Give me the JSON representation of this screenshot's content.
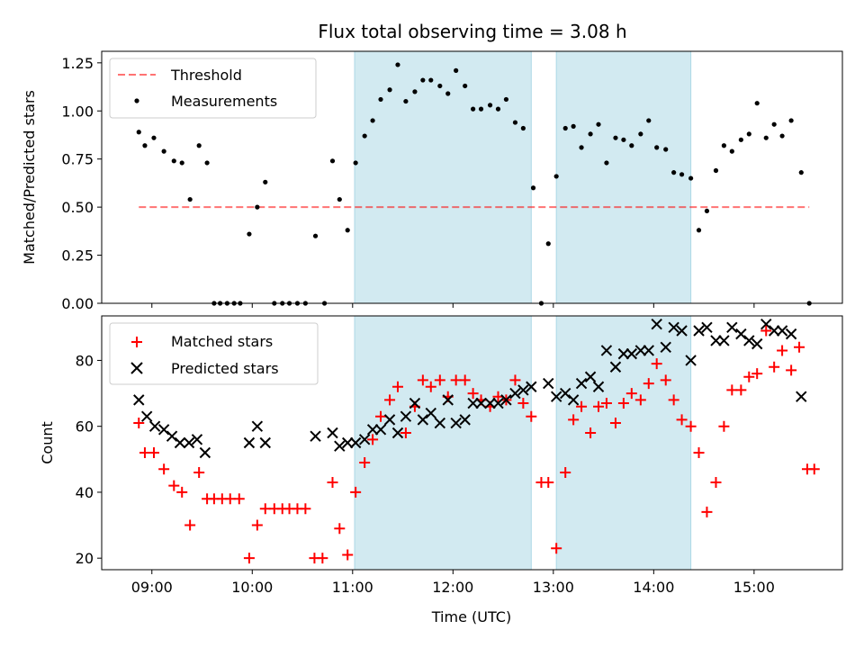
{
  "colors": {
    "span": "#add8e6",
    "threshold": "#ff0000",
    "matched": "#ff0000",
    "predicted": "#000000",
    "measurement": "#000000"
  },
  "chart_data": [
    {
      "type": "scatter",
      "title": "Flux total observing time = 3.08 h",
      "xlabel": "",
      "ylabel": "Matched/Predicted stars",
      "xlim": [
        8.5,
        15.88
      ],
      "ylim": [
        0,
        1.31
      ],
      "yticks": [
        0.0,
        0.25,
        0.5,
        0.75,
        1.0,
        1.25
      ],
      "ytick_labels": [
        "0.00",
        "0.25",
        "0.50",
        "0.75",
        "1.00",
        "1.25"
      ],
      "legend": [
        "Threshold",
        "Measurements"
      ],
      "threshold": {
        "name": "Threshold",
        "value": 0.5,
        "x_range": [
          8.87,
          15.55
        ]
      },
      "observing_spans": [
        [
          11.02,
          12.78
        ],
        [
          13.03,
          14.37
        ]
      ],
      "series": [
        {
          "name": "Measurements",
          "points": [
            [
              8.87,
              0.89
            ],
            [
              8.93,
              0.82
            ],
            [
              9.02,
              0.86
            ],
            [
              9.12,
              0.79
            ],
            [
              9.22,
              0.74
            ],
            [
              9.3,
              0.73
            ],
            [
              9.38,
              0.54
            ],
            [
              9.47,
              0.82
            ],
            [
              9.55,
              0.73
            ],
            [
              9.62,
              0.0
            ],
            [
              9.68,
              0.0
            ],
            [
              9.75,
              0.0
            ],
            [
              9.82,
              0.0
            ],
            [
              9.88,
              0.0
            ],
            [
              9.97,
              0.36
            ],
            [
              10.05,
              0.5
            ],
            [
              10.13,
              0.63
            ],
            [
              10.22,
              0.0
            ],
            [
              10.3,
              0.0
            ],
            [
              10.37,
              0.0
            ],
            [
              10.45,
              0.0
            ],
            [
              10.53,
              0.0
            ],
            [
              10.63,
              0.35
            ],
            [
              10.72,
              0.0
            ],
            [
              10.8,
              0.74
            ],
            [
              10.87,
              0.54
            ],
            [
              10.95,
              0.38
            ],
            [
              11.03,
              0.73
            ],
            [
              11.12,
              0.87
            ],
            [
              11.2,
              0.95
            ],
            [
              11.28,
              1.06
            ],
            [
              11.37,
              1.11
            ],
            [
              11.45,
              1.24
            ],
            [
              11.53,
              1.05
            ],
            [
              11.62,
              1.1
            ],
            [
              11.7,
              1.16
            ],
            [
              11.78,
              1.16
            ],
            [
              11.87,
              1.13
            ],
            [
              11.95,
              1.09
            ],
            [
              12.03,
              1.21
            ],
            [
              12.12,
              1.13
            ],
            [
              12.2,
              1.01
            ],
            [
              12.28,
              1.01
            ],
            [
              12.37,
              1.03
            ],
            [
              12.45,
              1.01
            ],
            [
              12.53,
              1.06
            ],
            [
              12.62,
              0.94
            ],
            [
              12.7,
              0.91
            ],
            [
              12.8,
              0.6
            ],
            [
              12.88,
              0.0
            ],
            [
              12.95,
              0.31
            ],
            [
              13.03,
              0.66
            ],
            [
              13.12,
              0.91
            ],
            [
              13.2,
              0.92
            ],
            [
              13.28,
              0.81
            ],
            [
              13.37,
              0.88
            ],
            [
              13.45,
              0.93
            ],
            [
              13.53,
              0.73
            ],
            [
              13.62,
              0.86
            ],
            [
              13.7,
              0.85
            ],
            [
              13.78,
              0.82
            ],
            [
              13.87,
              0.88
            ],
            [
              13.95,
              0.95
            ],
            [
              14.03,
              0.81
            ],
            [
              14.12,
              0.8
            ],
            [
              14.2,
              0.68
            ],
            [
              14.28,
              0.67
            ],
            [
              14.37,
              0.65
            ],
            [
              14.45,
              0.38
            ],
            [
              14.53,
              0.48
            ],
            [
              14.62,
              0.69
            ],
            [
              14.7,
              0.82
            ],
            [
              14.78,
              0.79
            ],
            [
              14.87,
              0.85
            ],
            [
              14.95,
              0.88
            ],
            [
              15.03,
              1.04
            ],
            [
              15.12,
              0.86
            ],
            [
              15.2,
              0.93
            ],
            [
              15.28,
              0.87
            ],
            [
              15.37,
              0.95
            ],
            [
              15.47,
              0.68
            ],
            [
              15.55,
              0.0
            ]
          ]
        }
      ]
    },
    {
      "type": "scatter",
      "title": "",
      "xlabel": "Time (UTC)",
      "ylabel": "Count",
      "xlim": [
        8.5,
        15.88
      ],
      "ylim": [
        16.5,
        93.5
      ],
      "yticks": [
        20,
        40,
        60,
        80
      ],
      "ytick_labels": [
        "20",
        "40",
        "60",
        "80"
      ],
      "xticks": [
        9,
        10,
        11,
        12,
        13,
        14,
        15
      ],
      "xtick_labels": [
        "09:00",
        "10:00",
        "11:00",
        "12:00",
        "13:00",
        "14:00",
        "15:00"
      ],
      "legend": [
        "Matched stars",
        "Predicted stars"
      ],
      "observing_spans": [
        [
          11.02,
          12.78
        ],
        [
          13.03,
          14.37
        ]
      ],
      "series": [
        {
          "name": "Matched stars",
          "marker": "plus",
          "points": [
            [
              8.87,
              61
            ],
            [
              8.93,
              52
            ],
            [
              9.02,
              52
            ],
            [
              9.12,
              47
            ],
            [
              9.22,
              42
            ],
            [
              9.3,
              40
            ],
            [
              9.38,
              30
            ],
            [
              9.47,
              46
            ],
            [
              9.55,
              38
            ],
            [
              9.62,
              38
            ],
            [
              9.7,
              38
            ],
            [
              9.78,
              38
            ],
            [
              9.87,
              38
            ],
            [
              9.97,
              20
            ],
            [
              10.05,
              30
            ],
            [
              10.13,
              35
            ],
            [
              10.22,
              35
            ],
            [
              10.3,
              35
            ],
            [
              10.37,
              35
            ],
            [
              10.45,
              35
            ],
            [
              10.53,
              35
            ],
            [
              10.62,
              20
            ],
            [
              10.7,
              20
            ],
            [
              10.8,
              43
            ],
            [
              10.87,
              29
            ],
            [
              10.95,
              21
            ],
            [
              11.03,
              40
            ],
            [
              11.12,
              49
            ],
            [
              11.2,
              56
            ],
            [
              11.28,
              63
            ],
            [
              11.37,
              68
            ],
            [
              11.45,
              72
            ],
            [
              11.53,
              58
            ],
            [
              11.62,
              66
            ],
            [
              11.7,
              74
            ],
            [
              11.78,
              72
            ],
            [
              11.87,
              74
            ],
            [
              11.95,
              69
            ],
            [
              12.03,
              74
            ],
            [
              12.12,
              74
            ],
            [
              12.2,
              70
            ],
            [
              12.28,
              68
            ],
            [
              12.37,
              66
            ],
            [
              12.45,
              69
            ],
            [
              12.53,
              68
            ],
            [
              12.62,
              74
            ],
            [
              12.7,
              67
            ],
            [
              12.78,
              63
            ],
            [
              12.88,
              43
            ],
            [
              12.95,
              43
            ],
            [
              13.03,
              23
            ],
            [
              13.12,
              46
            ],
            [
              13.2,
              62
            ],
            [
              13.28,
              66
            ],
            [
              13.37,
              58
            ],
            [
              13.45,
              66
            ],
            [
              13.53,
              67
            ],
            [
              13.62,
              61
            ],
            [
              13.7,
              67
            ],
            [
              13.78,
              70
            ],
            [
              13.87,
              68
            ],
            [
              13.95,
              73
            ],
            [
              14.03,
              79
            ],
            [
              14.12,
              74
            ],
            [
              14.2,
              68
            ],
            [
              14.28,
              62
            ],
            [
              14.37,
              60
            ],
            [
              14.45,
              52
            ],
            [
              14.53,
              34
            ],
            [
              14.62,
              43
            ],
            [
              14.7,
              60
            ],
            [
              14.78,
              71
            ],
            [
              14.87,
              71
            ],
            [
              14.95,
              75
            ],
            [
              15.03,
              76
            ],
            [
              15.12,
              89
            ],
            [
              15.2,
              78
            ],
            [
              15.28,
              83
            ],
            [
              15.37,
              77
            ],
            [
              15.45,
              84
            ],
            [
              15.53,
              47
            ],
            [
              15.6,
              47
            ]
          ]
        },
        {
          "name": "Predicted stars",
          "marker": "x",
          "points": [
            [
              8.87,
              68
            ],
            [
              8.95,
              63
            ],
            [
              9.03,
              60
            ],
            [
              9.12,
              59
            ],
            [
              9.2,
              57
            ],
            [
              9.28,
              55
            ],
            [
              9.37,
              55
            ],
            [
              9.45,
              56
            ],
            [
              9.53,
              52
            ],
            [
              9.97,
              55
            ],
            [
              10.05,
              60
            ],
            [
              10.13,
              55
            ],
            [
              10.63,
              57
            ],
            [
              10.8,
              58
            ],
            [
              10.87,
              54
            ],
            [
              10.95,
              55
            ],
            [
              11.03,
              55
            ],
            [
              11.12,
              56
            ],
            [
              11.2,
              59
            ],
            [
              11.28,
              59
            ],
            [
              11.37,
              62
            ],
            [
              11.45,
              58
            ],
            [
              11.53,
              63
            ],
            [
              11.62,
              67
            ],
            [
              11.7,
              62
            ],
            [
              11.78,
              64
            ],
            [
              11.87,
              61
            ],
            [
              11.95,
              68
            ],
            [
              12.03,
              61
            ],
            [
              12.12,
              62
            ],
            [
              12.2,
              67
            ],
            [
              12.28,
              67
            ],
            [
              12.37,
              67
            ],
            [
              12.45,
              67
            ],
            [
              12.53,
              68
            ],
            [
              12.62,
              70
            ],
            [
              12.7,
              71
            ],
            [
              12.78,
              72
            ],
            [
              12.95,
              73
            ],
            [
              13.03,
              69
            ],
            [
              13.12,
              70
            ],
            [
              13.2,
              68
            ],
            [
              13.28,
              73
            ],
            [
              13.37,
              75
            ],
            [
              13.45,
              72
            ],
            [
              13.53,
              83
            ],
            [
              13.62,
              78
            ],
            [
              13.7,
              82
            ],
            [
              13.78,
              82
            ],
            [
              13.87,
              83
            ],
            [
              13.95,
              83
            ],
            [
              14.03,
              91
            ],
            [
              14.12,
              84
            ],
            [
              14.2,
              90
            ],
            [
              14.28,
              89
            ],
            [
              14.37,
              80
            ],
            [
              14.45,
              89
            ],
            [
              14.53,
              90
            ],
            [
              14.62,
              86
            ],
            [
              14.7,
              86
            ],
            [
              14.78,
              90
            ],
            [
              14.87,
              88
            ],
            [
              14.95,
              86
            ],
            [
              15.03,
              85
            ],
            [
              15.12,
              91
            ],
            [
              15.2,
              89
            ],
            [
              15.28,
              89
            ],
            [
              15.37,
              88
            ],
            [
              15.47,
              69
            ]
          ]
        }
      ]
    }
  ]
}
